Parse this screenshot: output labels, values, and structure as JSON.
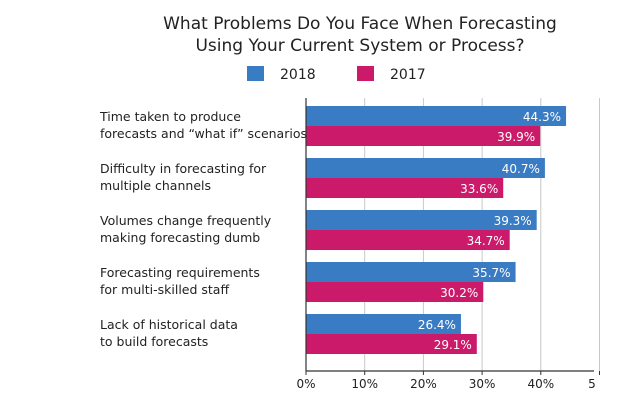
{
  "chart_data": {
    "type": "bar",
    "orientation": "horizontal",
    "title": [
      "What Problems Do You Face When Forecasting",
      "Using Your Current System or Process?"
    ],
    "categories": [
      [
        "Time taken to produce",
        "forecasts and “what if” scenarios"
      ],
      [
        "Difficulty in forecasting for",
        "multiple channels"
      ],
      [
        "Volumes change frequently",
        "making forecasting dumb"
      ],
      [
        "Forecasting requirements",
        "for multi-skilled staff"
      ],
      [
        "Lack of historical data",
        "to build forecasts"
      ]
    ],
    "series": [
      {
        "name": "2018",
        "color": "#3a7cc4",
        "values": [
          44.3,
          40.7,
          39.3,
          35.7,
          26.4
        ],
        "labels": [
          "44.3%",
          "40.7%",
          "39.3%",
          "35.7%",
          "26.4%"
        ]
      },
      {
        "name": "2017",
        "color": "#cc1a6b",
        "values": [
          39.9,
          33.6,
          34.7,
          30.2,
          29.1
        ],
        "labels": [
          "39.9%",
          "33.6%",
          "34.7%",
          "30.2%",
          "29.1%"
        ]
      }
    ],
    "xlim": [
      0,
      50
    ],
    "xticks": [
      "0%",
      "10%",
      "20%",
      "30%",
      "40%",
      "5"
    ],
    "grid": true,
    "legend": "top"
  }
}
